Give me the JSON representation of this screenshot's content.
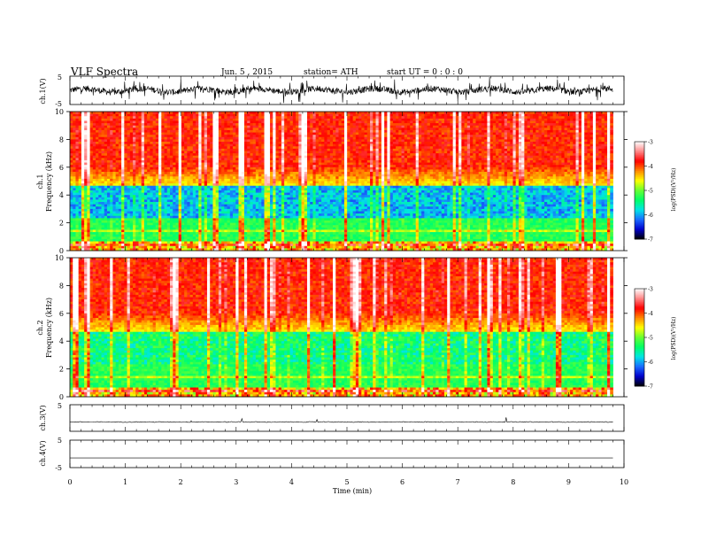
{
  "header": {
    "title": "VLF  Spectra",
    "date": "Jun. 5  , 2015",
    "station": "station= ATH",
    "start_ut": "start  UT  =   0  : 0  : 0"
  },
  "chart_data": [
    {
      "type": "line",
      "panel": "ch1-waveform",
      "ylabel": "ch.1(V)",
      "ylim": [
        -5,
        5
      ],
      "yticks": [
        "5",
        "-5"
      ],
      "xlim": [
        0,
        10
      ],
      "x_data_end": 9.8,
      "description_signal": "noisy broadband waveform centered near 0 V",
      "color": "#000000"
    },
    {
      "type": "heatmap",
      "panel": "ch1-spectrogram",
      "ylabel_line1": "ch.1",
      "ylabel_line2": "Frequency  (kHz)",
      "ylim": [
        0,
        10
      ],
      "yticks": [
        "0",
        "2",
        "4",
        "6",
        "8",
        "10"
      ],
      "xlim": [
        0,
        10
      ],
      "x_data_end": 9.8,
      "colorbar": {
        "label": "log(PSD)(V²/Hz)",
        "range": [
          -7,
          -3
        ],
        "ticks": [
          "-3",
          "-4",
          "-5",
          "-6",
          "-7"
        ],
        "colors": [
          "#000000",
          "#0000cc",
          "#1a6bff",
          "#00e5e5",
          "#00ff66",
          "#66ff33",
          "#ffff00",
          "#ff8800",
          "#ff0000",
          "#ff8888",
          "#ffffff"
        ]
      }
    },
    {
      "type": "heatmap",
      "panel": "ch2-spectrogram",
      "ylabel_line1": "ch.2",
      "ylabel_line2": "Frequency  (kHz)",
      "ylim": [
        0,
        10
      ],
      "yticks": [
        "0",
        "2",
        "4",
        "6",
        "8",
        "10"
      ],
      "xlim": [
        0,
        10
      ],
      "x_data_end": 9.8,
      "colorbar": {
        "label": "log(PSD)(V²/Hz)",
        "range": [
          -7,
          -3
        ],
        "ticks": [
          "-3",
          "-4",
          "-5",
          "-6",
          "-7"
        ],
        "colors": [
          "#000000",
          "#0000cc",
          "#1a6bff",
          "#00e5e5",
          "#00ff66",
          "#66ff33",
          "#ffff00",
          "#ff8800",
          "#ff0000",
          "#ff8888",
          "#ffffff"
        ]
      }
    },
    {
      "type": "line",
      "panel": "ch3-waveform",
      "ylabel": "ch.3(V)",
      "ylim": [
        -5,
        5
      ],
      "yticks": [
        "5"
      ],
      "xlim": [
        0,
        10
      ],
      "x_data_end": 9.8,
      "baseline_value": -1.5,
      "color": "#000000"
    },
    {
      "type": "line",
      "panel": "ch4-waveform",
      "ylabel": "ch.4(V)",
      "ylim": [
        -5,
        5
      ],
      "yticks": [
        "5",
        "-5"
      ],
      "xlim": [
        0,
        10
      ],
      "x_data_end": 9.8,
      "baseline_value": -1.5,
      "color": "#000000"
    }
  ],
  "xaxis": {
    "label": "Time  (min)",
    "ticks": [
      "0",
      "1",
      "2",
      "3",
      "4",
      "5",
      "6",
      "7",
      "8",
      "9",
      "10"
    ]
  }
}
